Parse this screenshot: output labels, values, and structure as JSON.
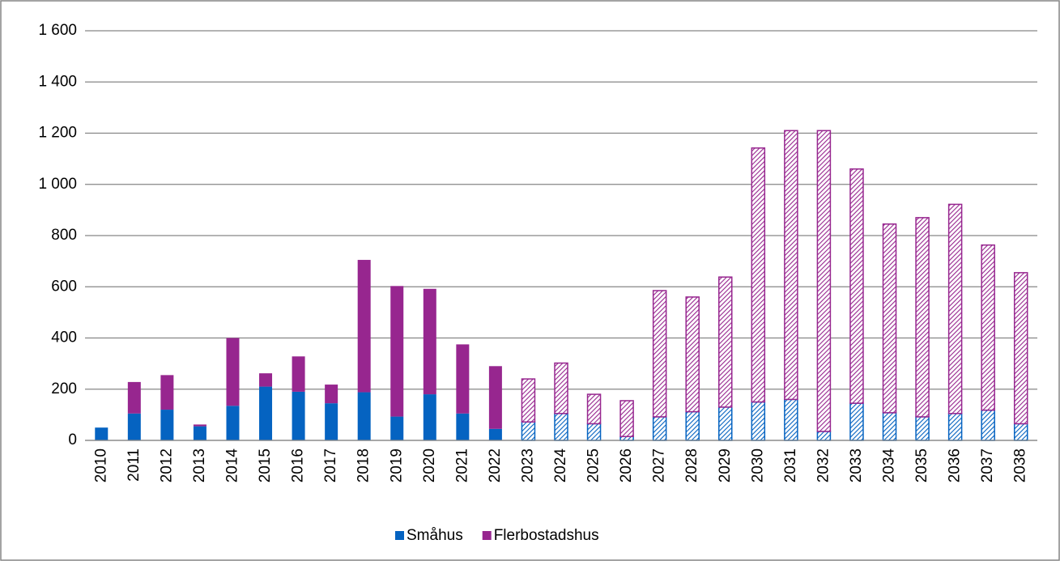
{
  "chart_data": {
    "type": "stacked_bar",
    "categories": [
      "2010",
      "2011",
      "2012",
      "2013",
      "2014",
      "2015",
      "2016",
      "2017",
      "2018",
      "2019",
      "2020",
      "2021",
      "2022",
      "2023",
      "2024",
      "2025",
      "2026",
      "2027",
      "2028",
      "2029",
      "2030",
      "2031",
      "2032",
      "2033",
      "2034",
      "2035",
      "2036",
      "2037",
      "2038"
    ],
    "series": [
      {
        "name": "Småhus",
        "color": "#0563c1",
        "values": [
          50,
          105,
          120,
          55,
          135,
          210,
          190,
          145,
          188,
          93,
          180,
          105,
          45,
          72,
          105,
          65,
          15,
          92,
          112,
          130,
          150,
          160,
          35,
          145,
          108,
          92,
          105,
          118,
          65
        ]
      },
      {
        "name": "Flerbostadshus",
        "color": "#97268f",
        "values": [
          0,
          123,
          135,
          7,
          265,
          52,
          138,
          73,
          517,
          510,
          412,
          270,
          245,
          168,
          197,
          115,
          140,
          493,
          448,
          508,
          992,
          1050,
          1175,
          915,
          737,
          778,
          817,
          645,
          590
        ]
      }
    ],
    "hatched_from": "2023",
    "ylim": [
      0,
      1600
    ],
    "yticks": [
      0,
      200,
      400,
      600,
      800,
      {
        "value": 1000,
        "label": "1 000"
      },
      {
        "value": 1200,
        "label": "1 200"
      },
      {
        "value": 1400,
        "label": "1 400"
      },
      {
        "value": 1600,
        "label": "1 600"
      }
    ],
    "grid": true,
    "legend": "bottom"
  }
}
